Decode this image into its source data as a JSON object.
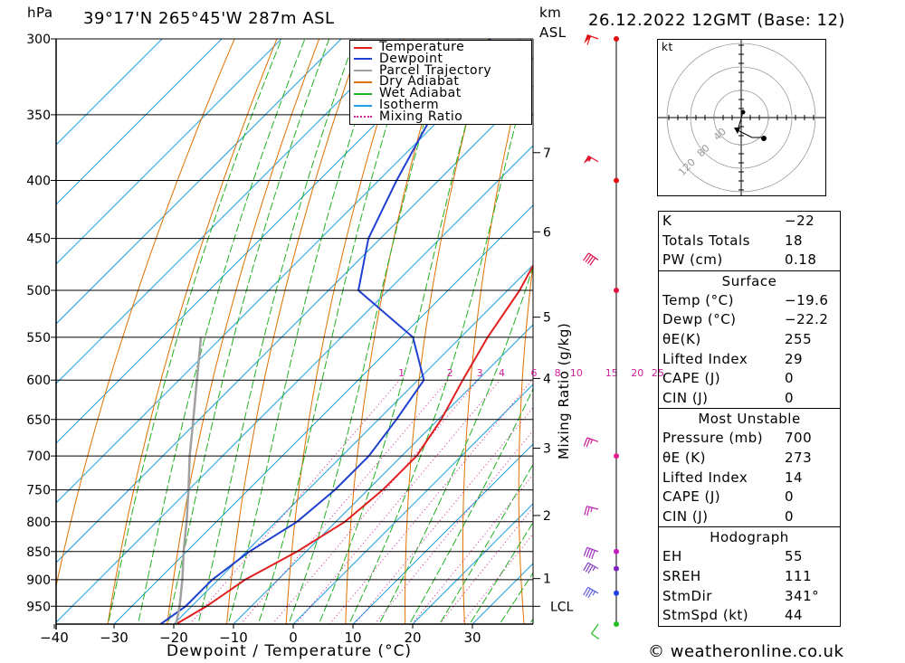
{
  "header": {
    "pressure_unit": "hPa",
    "location": "39°17'N  265°45'W  287m  ASL",
    "km_label": "km",
    "asl_label": "ASL",
    "datetime": "26.12.2022  12GMT  (Base: 12)"
  },
  "footer": {
    "copyright": "© weatheronline.co.uk"
  },
  "chart_data": {
    "type": "line",
    "subtype": "skew-t log-p",
    "xlabel": "Dewpoint / Temperature (°C)",
    "ylabel": "hPa",
    "secondary_ylabel": "Mixing Ratio (g/kg)",
    "xlim": [
      -40,
      40
    ],
    "ylim": [
      985,
      300
    ],
    "x_ticks": [
      "−40",
      "−30",
      "−20",
      "−10",
      "0",
      "10",
      "20",
      "30"
    ],
    "pressure_levels": [
      300,
      350,
      400,
      450,
      500,
      550,
      600,
      650,
      700,
      750,
      800,
      850,
      900,
      950
    ],
    "km_ticks": [
      {
        "km": "7",
        "p": 378
      },
      {
        "km": "6",
        "p": 444
      },
      {
        "km": "5",
        "p": 528
      },
      {
        "km": "4",
        "p": 598
      },
      {
        "km": "3",
        "p": 689
      },
      {
        "km": "2",
        "p": 790
      },
      {
        "km": "1",
        "p": 898
      }
    ],
    "lcl": {
      "label": "LCL",
      "p": 950
    },
    "mixing_ratio_labels": [
      "1",
      "2",
      "3",
      "4",
      "6",
      "8",
      "10",
      "15",
      "20",
      "25"
    ],
    "legend": [
      {
        "name": "Temperature",
        "color": "#e02020",
        "style": "solid"
      },
      {
        "name": "Dewpoint",
        "color": "#2040d0",
        "style": "solid"
      },
      {
        "name": "Parcel Trajectory",
        "color": "#a0a0a0",
        "style": "solid"
      },
      {
        "name": "Dry Adiabat",
        "color": "#e07000",
        "style": "solid"
      },
      {
        "name": "Wet Adiabat",
        "color": "#20b020",
        "style": "solid"
      },
      {
        "name": "Isotherm",
        "color": "#20a0e0",
        "style": "solid"
      },
      {
        "name": "Mixing Ratio",
        "color": "#d0209a",
        "style": "dotted"
      }
    ],
    "legend_position": "top-right",
    "series": [
      {
        "name": "Temperature",
        "color": "#e02020",
        "points": [
          [
            985,
            -19.6
          ],
          [
            950,
            -17.5
          ],
          [
            900,
            -15.5
          ],
          [
            850,
            -11.5
          ],
          [
            800,
            -8.5
          ],
          [
            750,
            -7.5
          ],
          [
            700,
            -7.5
          ],
          [
            650,
            -9.5
          ],
          [
            600,
            -12.5
          ],
          [
            550,
            -15.5
          ],
          [
            500,
            -18
          ],
          [
            450,
            -22
          ],
          [
            400,
            -24
          ],
          [
            350,
            -27
          ],
          [
            300,
            -32
          ]
        ]
      },
      {
        "name": "Dewpoint",
        "color": "#2040d0",
        "points": [
          [
            985,
            -22.2
          ],
          [
            950,
            -21
          ],
          [
            900,
            -21
          ],
          [
            850,
            -19.5
          ],
          [
            800,
            -16.5
          ],
          [
            750,
            -15.5
          ],
          [
            700,
            -15.5
          ],
          [
            650,
            -17
          ],
          [
            600,
            -19
          ],
          [
            550,
            -28
          ],
          [
            500,
            -45
          ],
          [
            450,
            -52
          ],
          [
            400,
            -57
          ],
          [
            350,
            -62
          ],
          [
            300,
            -65
          ]
        ]
      },
      {
        "name": "Parcel Trajectory",
        "color": "#a0a0a0",
        "points": [
          [
            985,
            -19.6
          ],
          [
            950,
            -22
          ],
          [
            900,
            -26
          ],
          [
            850,
            -30.5
          ],
          [
            800,
            -35
          ],
          [
            750,
            -40
          ],
          [
            700,
            -45.5
          ],
          [
            650,
            -51
          ],
          [
            600,
            -57
          ],
          [
            550,
            -63.5
          ]
        ]
      }
    ],
    "wind_barbs": [
      {
        "p": 985,
        "dir": 215,
        "spd": 10,
        "color": "#20c020"
      },
      {
        "p": 925,
        "dir": 300,
        "spd": 35,
        "color": "#6060e0"
      },
      {
        "p": 880,
        "dir": 300,
        "spd": 35,
        "color": "#8040c0"
      },
      {
        "p": 850,
        "dir": 290,
        "spd": 40,
        "color": "#a030c0"
      },
      {
        "p": 780,
        "dir": 285,
        "spd": 25,
        "color": "#c020b0"
      },
      {
        "p": 680,
        "dir": 290,
        "spd": 25,
        "color": "#d01890"
      },
      {
        "p": 470,
        "dir": 305,
        "spd": 40,
        "color": "#e01050"
      },
      {
        "p": 385,
        "dir": 300,
        "spd": 55,
        "color": "#e01030"
      },
      {
        "p": 300,
        "dir": 290,
        "spd": 60,
        "color": "#e01010"
      }
    ],
    "wind_dots": [
      {
        "p": 985,
        "color": "#20c020"
      },
      {
        "p": 925,
        "color": "#2040e0"
      },
      {
        "p": 880,
        "color": "#8020c0"
      },
      {
        "p": 850,
        "color": "#c020c0"
      },
      {
        "p": 700,
        "color": "#e0208a"
      },
      {
        "p": 500,
        "color": "#e01040"
      },
      {
        "p": 400,
        "color": "#e01010"
      },
      {
        "p": 300,
        "color": "#e01010"
      }
    ]
  },
  "hodograph": {
    "unit": "kt",
    "ring_labels": [
      "40",
      "80",
      "120"
    ],
    "points": [
      [
        2,
        6
      ],
      [
        -4,
        -14
      ],
      [
        4,
        -18
      ],
      [
        12,
        -22
      ],
      [
        22,
        -22
      ],
      [
        25,
        -23
      ]
    ]
  },
  "stats": {
    "indices": [
      {
        "label": "K",
        "value": "−22"
      },
      {
        "label": "Totals Totals",
        "value": "18"
      },
      {
        "label": "PW (cm)",
        "value": "0.18"
      }
    ],
    "surface": {
      "title": "Surface",
      "rows": [
        {
          "label": "Temp (°C)",
          "value": "−19.6"
        },
        {
          "label": "Dewp (°C)",
          "value": "−22.2"
        },
        {
          "label": "θE(K)",
          "value": "255"
        },
        {
          "label": "Lifted Index",
          "value": "29"
        },
        {
          "label": "CAPE (J)",
          "value": "0"
        },
        {
          "label": "CIN (J)",
          "value": "0"
        }
      ]
    },
    "most_unstable": {
      "title": "Most Unstable",
      "rows": [
        {
          "label": "Pressure (mb)",
          "value": "700"
        },
        {
          "label": "θE (K)",
          "value": "273"
        },
        {
          "label": "Lifted Index",
          "value": "14"
        },
        {
          "label": "CAPE (J)",
          "value": "0"
        },
        {
          "label": "CIN (J)",
          "value": "0"
        }
      ]
    },
    "hodograph": {
      "title": "Hodograph",
      "rows": [
        {
          "label": "EH",
          "value": "55"
        },
        {
          "label": "SREH",
          "value": "111"
        },
        {
          "label": "StmDir",
          "value": "341°"
        },
        {
          "label": "StmSpd (kt)",
          "value": "44"
        }
      ]
    }
  }
}
